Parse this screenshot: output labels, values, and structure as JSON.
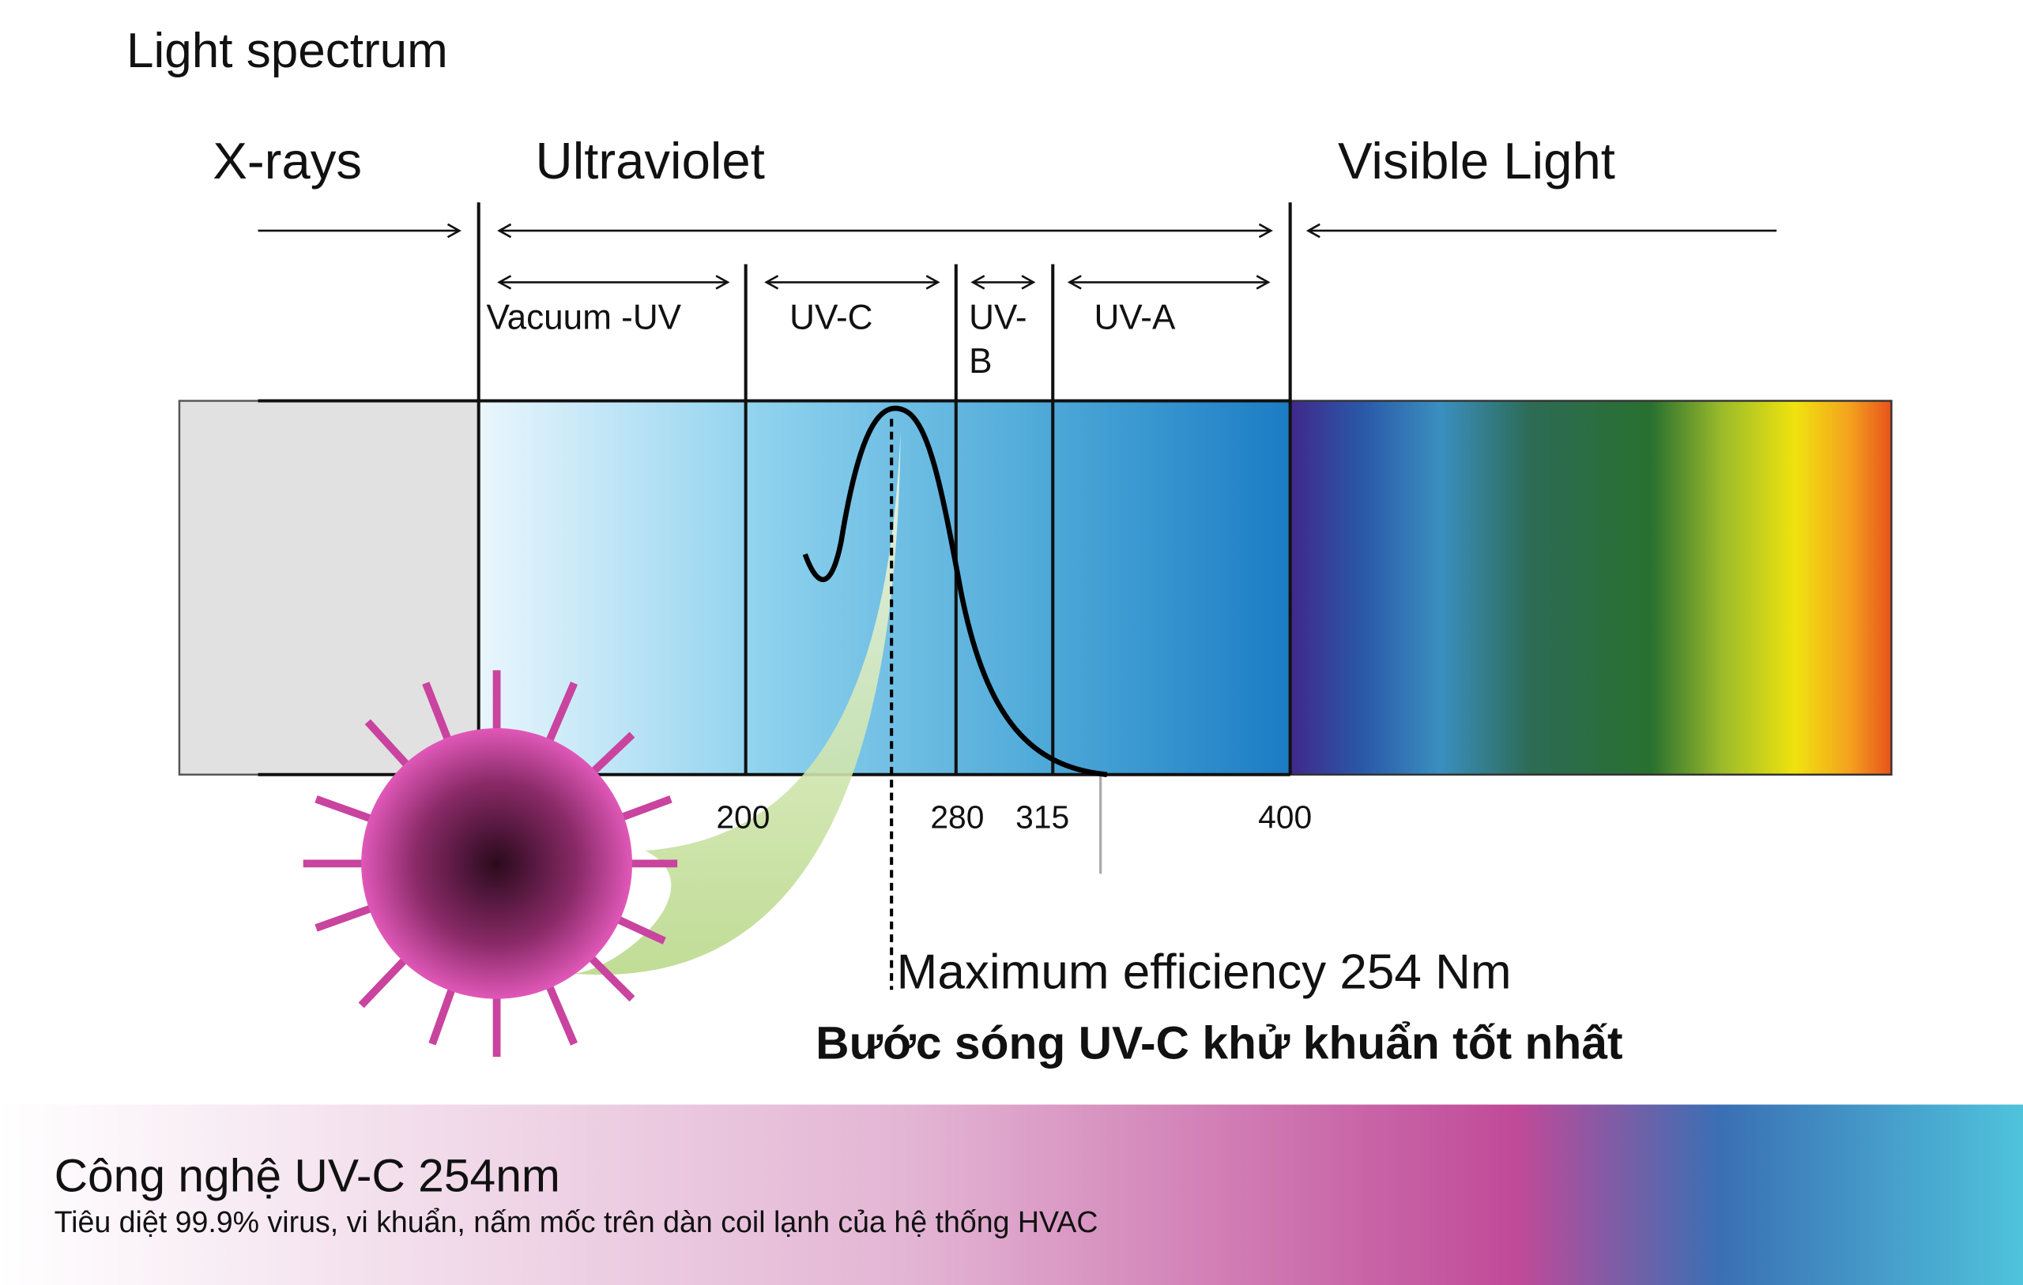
{
  "title": "Light spectrum",
  "regions": [
    "X-rays",
    "Ultraviolet",
    "Visible Light"
  ],
  "bands": {
    "vacuum_uv": "Vacuum -UV",
    "uv_c": "UV-C",
    "uv_b": [
      "UV-",
      "B"
    ],
    "uv_a": "UV-A"
  },
  "wavelengths": [
    200,
    280,
    315,
    400
  ],
  "annotation": "Maximum efficiency 254 Nm",
  "headline": "Bước sóng UV-C khử khuẩn tốt nhất",
  "footer": {
    "title": "Công nghệ UV-C 254nm",
    "subtitle": "Tiêu diệt 99.9% virus, vi khuẩn, nấm mốc trên dàn coil lạnh của hệ thống HVAC"
  }
}
